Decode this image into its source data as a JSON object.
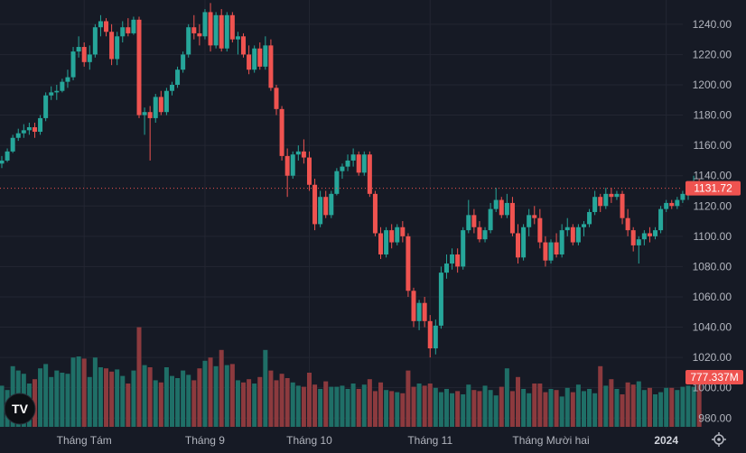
{
  "chart_data": {
    "type": "candlestick",
    "y_axis": {
      "position": "right",
      "ylim": [
        973,
        1256
      ],
      "ticks": [
        980,
        1000,
        1020,
        1040,
        1060,
        1080,
        1100,
        1120,
        1140,
        1160,
        1180,
        1200,
        1220,
        1240
      ]
    },
    "x_axis_labels": [
      {
        "label": "Tháng Tám",
        "index": 15
      },
      {
        "label": "Tháng 9",
        "index": 37
      },
      {
        "label": "Tháng 10",
        "index": 56
      },
      {
        "label": "Tháng 11",
        "index": 78
      },
      {
        "label": "Tháng Mười hai",
        "index": 100
      },
      {
        "label": "2024",
        "index": 121,
        "bold": true
      }
    ],
    "last_price": "1131.72",
    "last_volume": "777.337M",
    "grid": true,
    "colors": {
      "up": "#26a69a",
      "down": "#ef5350",
      "up_volume": "#1f6f67",
      "down_volume": "#8c3a3e",
      "background": "#161a25",
      "price_line": "#ef5350"
    },
    "candles": [
      {
        "o": 1148,
        "h": 1153,
        "l": 1145,
        "c": 1150,
        "v": 0.38
      },
      {
        "o": 1150,
        "h": 1158,
        "l": 1149,
        "c": 1156,
        "v": 0.34
      },
      {
        "o": 1156,
        "h": 1167,
        "l": 1155,
        "c": 1165,
        "v": 0.56
      },
      {
        "o": 1165,
        "h": 1171,
        "l": 1163,
        "c": 1168,
        "v": 0.52
      },
      {
        "o": 1168,
        "h": 1174,
        "l": 1165,
        "c": 1170,
        "v": 0.49
      },
      {
        "o": 1170,
        "h": 1175,
        "l": 1167,
        "c": 1172,
        "v": 0.4
      },
      {
        "o": 1172,
        "h": 1175,
        "l": 1165,
        "c": 1169,
        "v": 0.44
      },
      {
        "o": 1169,
        "h": 1180,
        "l": 1167,
        "c": 1178,
        "v": 0.54
      },
      {
        "o": 1178,
        "h": 1195,
        "l": 1176,
        "c": 1193,
        "v": 0.58
      },
      {
        "o": 1193,
        "h": 1199,
        "l": 1190,
        "c": 1195,
        "v": 0.46
      },
      {
        "o": 1195,
        "h": 1200,
        "l": 1190,
        "c": 1196,
        "v": 0.52
      },
      {
        "o": 1196,
        "h": 1204,
        "l": 1195,
        "c": 1202,
        "v": 0.5
      },
      {
        "o": 1202,
        "h": 1210,
        "l": 1198,
        "c": 1205,
        "v": 0.49
      },
      {
        "o": 1205,
        "h": 1225,
        "l": 1203,
        "c": 1222,
        "v": 0.64
      },
      {
        "o": 1222,
        "h": 1232,
        "l": 1218,
        "c": 1225,
        "v": 0.65
      },
      {
        "o": 1225,
        "h": 1228,
        "l": 1212,
        "c": 1215,
        "v": 0.63
      },
      {
        "o": 1215,
        "h": 1226,
        "l": 1210,
        "c": 1220,
        "v": 0.46
      },
      {
        "o": 1220,
        "h": 1240,
        "l": 1218,
        "c": 1238,
        "v": 0.64
      },
      {
        "o": 1238,
        "h": 1246,
        "l": 1232,
        "c": 1242,
        "v": 0.55
      },
      {
        "o": 1242,
        "h": 1244,
        "l": 1232,
        "c": 1235,
        "v": 0.54
      },
      {
        "o": 1235,
        "h": 1240,
        "l": 1213,
        "c": 1217,
        "v": 0.51
      },
      {
        "o": 1217,
        "h": 1235,
        "l": 1213,
        "c": 1232,
        "v": 0.53
      },
      {
        "o": 1232,
        "h": 1242,
        "l": 1228,
        "c": 1238,
        "v": 0.47
      },
      {
        "o": 1238,
        "h": 1244,
        "l": 1232,
        "c": 1234,
        "v": 0.4
      },
      {
        "o": 1234,
        "h": 1245,
        "l": 1233,
        "c": 1243,
        "v": 0.52
      },
      {
        "o": 1243,
        "h": 1245,
        "l": 1178,
        "c": 1180,
        "v": 0.92
      },
      {
        "o": 1180,
        "h": 1185,
        "l": 1167,
        "c": 1182,
        "v": 0.57
      },
      {
        "o": 1182,
        "h": 1186,
        "l": 1150,
        "c": 1178,
        "v": 0.55
      },
      {
        "o": 1178,
        "h": 1194,
        "l": 1175,
        "c": 1192,
        "v": 0.43
      },
      {
        "o": 1192,
        "h": 1196,
        "l": 1180,
        "c": 1182,
        "v": 0.41
      },
      {
        "o": 1182,
        "h": 1198,
        "l": 1180,
        "c": 1196,
        "v": 0.55
      },
      {
        "o": 1196,
        "h": 1202,
        "l": 1193,
        "c": 1200,
        "v": 0.47
      },
      {
        "o": 1200,
        "h": 1212,
        "l": 1198,
        "c": 1210,
        "v": 0.45
      },
      {
        "o": 1210,
        "h": 1222,
        "l": 1208,
        "c": 1220,
        "v": 0.52
      },
      {
        "o": 1220,
        "h": 1240,
        "l": 1218,
        "c": 1238,
        "v": 0.48
      },
      {
        "o": 1238,
        "h": 1246,
        "l": 1230,
        "c": 1234,
        "v": 0.43
      },
      {
        "o": 1234,
        "h": 1240,
        "l": 1226,
        "c": 1232,
        "v": 0.54
      },
      {
        "o": 1232,
        "h": 1250,
        "l": 1230,
        "c": 1248,
        "v": 0.61
      },
      {
        "o": 1248,
        "h": 1254,
        "l": 1222,
        "c": 1226,
        "v": 0.64
      },
      {
        "o": 1226,
        "h": 1248,
        "l": 1224,
        "c": 1246,
        "v": 0.56
      },
      {
        "o": 1246,
        "h": 1250,
        "l": 1222,
        "c": 1224,
        "v": 0.71
      },
      {
        "o": 1224,
        "h": 1248,
        "l": 1222,
        "c": 1246,
        "v": 0.57
      },
      {
        "o": 1246,
        "h": 1248,
        "l": 1228,
        "c": 1230,
        "v": 0.58
      },
      {
        "o": 1230,
        "h": 1235,
        "l": 1220,
        "c": 1232,
        "v": 0.43
      },
      {
        "o": 1232,
        "h": 1234,
        "l": 1218,
        "c": 1220,
        "v": 0.41
      },
      {
        "o": 1220,
        "h": 1226,
        "l": 1207,
        "c": 1210,
        "v": 0.44
      },
      {
        "o": 1210,
        "h": 1226,
        "l": 1208,
        "c": 1224,
        "v": 0.4
      },
      {
        "o": 1224,
        "h": 1228,
        "l": 1210,
        "c": 1212,
        "v": 0.46
      },
      {
        "o": 1212,
        "h": 1232,
        "l": 1210,
        "c": 1226,
        "v": 0.71
      },
      {
        "o": 1226,
        "h": 1230,
        "l": 1196,
        "c": 1198,
        "v": 0.52
      },
      {
        "o": 1198,
        "h": 1200,
        "l": 1180,
        "c": 1184,
        "v": 0.43
      },
      {
        "o": 1184,
        "h": 1186,
        "l": 1150,
        "c": 1153,
        "v": 0.49
      },
      {
        "o": 1153,
        "h": 1158,
        "l": 1126,
        "c": 1140,
        "v": 0.45
      },
      {
        "o": 1140,
        "h": 1156,
        "l": 1138,
        "c": 1154,
        "v": 0.41
      },
      {
        "o": 1154,
        "h": 1160,
        "l": 1150,
        "c": 1156,
        "v": 0.38
      },
      {
        "o": 1156,
        "h": 1164,
        "l": 1148,
        "c": 1152,
        "v": 0.37
      },
      {
        "o": 1152,
        "h": 1156,
        "l": 1130,
        "c": 1134,
        "v": 0.5
      },
      {
        "o": 1134,
        "h": 1138,
        "l": 1104,
        "c": 1108,
        "v": 0.39
      },
      {
        "o": 1108,
        "h": 1130,
        "l": 1106,
        "c": 1126,
        "v": 0.35
      },
      {
        "o": 1126,
        "h": 1130,
        "l": 1112,
        "c": 1114,
        "v": 0.42
      },
      {
        "o": 1114,
        "h": 1130,
        "l": 1112,
        "c": 1128,
        "v": 0.37
      },
      {
        "o": 1128,
        "h": 1145,
        "l": 1127,
        "c": 1143,
        "v": 0.37
      },
      {
        "o": 1143,
        "h": 1148,
        "l": 1138,
        "c": 1146,
        "v": 0.38
      },
      {
        "o": 1146,
        "h": 1154,
        "l": 1143,
        "c": 1150,
        "v": 0.35
      },
      {
        "o": 1150,
        "h": 1158,
        "l": 1146,
        "c": 1154,
        "v": 0.4
      },
      {
        "o": 1154,
        "h": 1156,
        "l": 1140,
        "c": 1142,
        "v": 0.35
      },
      {
        "o": 1142,
        "h": 1156,
        "l": 1140,
        "c": 1154,
        "v": 0.39
      },
      {
        "o": 1154,
        "h": 1156,
        "l": 1126,
        "c": 1128,
        "v": 0.44
      },
      {
        "o": 1128,
        "h": 1130,
        "l": 1100,
        "c": 1102,
        "v": 0.33
      },
      {
        "o": 1102,
        "h": 1106,
        "l": 1085,
        "c": 1088,
        "v": 0.41
      },
      {
        "o": 1088,
        "h": 1106,
        "l": 1086,
        "c": 1104,
        "v": 0.34
      },
      {
        "o": 1104,
        "h": 1108,
        "l": 1092,
        "c": 1096,
        "v": 0.33
      },
      {
        "o": 1096,
        "h": 1108,
        "l": 1094,
        "c": 1106,
        "v": 0.32
      },
      {
        "o": 1106,
        "h": 1110,
        "l": 1096,
        "c": 1100,
        "v": 0.31
      },
      {
        "o": 1100,
        "h": 1102,
        "l": 1060,
        "c": 1064,
        "v": 0.52
      },
      {
        "o": 1064,
        "h": 1066,
        "l": 1040,
        "c": 1044,
        "v": 0.37
      },
      {
        "o": 1044,
        "h": 1058,
        "l": 1038,
        "c": 1056,
        "v": 0.4
      },
      {
        "o": 1056,
        "h": 1060,
        "l": 1040,
        "c": 1044,
        "v": 0.38
      },
      {
        "o": 1044,
        "h": 1048,
        "l": 1020,
        "c": 1026,
        "v": 0.4
      },
      {
        "o": 1026,
        "h": 1045,
        "l": 1022,
        "c": 1041,
        "v": 0.36
      },
      {
        "o": 1041,
        "h": 1080,
        "l": 1039,
        "c": 1076,
        "v": 0.32
      },
      {
        "o": 1076,
        "h": 1088,
        "l": 1072,
        "c": 1082,
        "v": 0.35
      },
      {
        "o": 1082,
        "h": 1092,
        "l": 1078,
        "c": 1088,
        "v": 0.31
      },
      {
        "o": 1088,
        "h": 1092,
        "l": 1076,
        "c": 1080,
        "v": 0.33
      },
      {
        "o": 1080,
        "h": 1106,
        "l": 1078,
        "c": 1104,
        "v": 0.3
      },
      {
        "o": 1104,
        "h": 1124,
        "l": 1102,
        "c": 1114,
        "v": 0.39
      },
      {
        "o": 1114,
        "h": 1118,
        "l": 1102,
        "c": 1106,
        "v": 0.34
      },
      {
        "o": 1106,
        "h": 1110,
        "l": 1096,
        "c": 1098,
        "v": 0.33
      },
      {
        "o": 1098,
        "h": 1106,
        "l": 1096,
        "c": 1104,
        "v": 0.38
      },
      {
        "o": 1104,
        "h": 1122,
        "l": 1102,
        "c": 1118,
        "v": 0.34
      },
      {
        "o": 1118,
        "h": 1132,
        "l": 1116,
        "c": 1124,
        "v": 0.29
      },
      {
        "o": 1124,
        "h": 1126,
        "l": 1112,
        "c": 1114,
        "v": 0.37
      },
      {
        "o": 1114,
        "h": 1128,
        "l": 1112,
        "c": 1122,
        "v": 0.54
      },
      {
        "o": 1122,
        "h": 1126,
        "l": 1100,
        "c": 1102,
        "v": 0.33
      },
      {
        "o": 1102,
        "h": 1108,
        "l": 1082,
        "c": 1086,
        "v": 0.46
      },
      {
        "o": 1086,
        "h": 1108,
        "l": 1084,
        "c": 1106,
        "v": 0.35
      },
      {
        "o": 1106,
        "h": 1118,
        "l": 1100,
        "c": 1114,
        "v": 0.31
      },
      {
        "o": 1114,
        "h": 1120,
        "l": 1108,
        "c": 1112,
        "v": 0.4
      },
      {
        "o": 1112,
        "h": 1118,
        "l": 1092,
        "c": 1096,
        "v": 0.4
      },
      {
        "o": 1096,
        "h": 1100,
        "l": 1080,
        "c": 1084,
        "v": 0.32
      },
      {
        "o": 1084,
        "h": 1098,
        "l": 1082,
        "c": 1096,
        "v": 0.35
      },
      {
        "o": 1096,
        "h": 1102,
        "l": 1086,
        "c": 1088,
        "v": 0.34
      },
      {
        "o": 1088,
        "h": 1108,
        "l": 1086,
        "c": 1104,
        "v": 0.28
      },
      {
        "o": 1104,
        "h": 1112,
        "l": 1100,
        "c": 1106,
        "v": 0.36
      },
      {
        "o": 1106,
        "h": 1108,
        "l": 1094,
        "c": 1096,
        "v": 0.32
      },
      {
        "o": 1096,
        "h": 1108,
        "l": 1094,
        "c": 1106,
        "v": 0.39
      },
      {
        "o": 1106,
        "h": 1110,
        "l": 1100,
        "c": 1108,
        "v": 0.33
      },
      {
        "o": 1108,
        "h": 1118,
        "l": 1106,
        "c": 1116,
        "v": 0.35
      },
      {
        "o": 1116,
        "h": 1130,
        "l": 1114,
        "c": 1126,
        "v": 0.31
      },
      {
        "o": 1126,
        "h": 1128,
        "l": 1116,
        "c": 1120,
        "v": 0.56
      },
      {
        "o": 1120,
        "h": 1132,
        "l": 1118,
        "c": 1128,
        "v": 0.38
      },
      {
        "o": 1128,
        "h": 1132,
        "l": 1122,
        "c": 1126,
        "v": 0.44
      },
      {
        "o": 1126,
        "h": 1130,
        "l": 1124,
        "c": 1128,
        "v": 0.35
      },
      {
        "o": 1128,
        "h": 1130,
        "l": 1108,
        "c": 1112,
        "v": 0.3
      },
      {
        "o": 1112,
        "h": 1118,
        "l": 1100,
        "c": 1104,
        "v": 0.41
      },
      {
        "o": 1104,
        "h": 1106,
        "l": 1090,
        "c": 1094,
        "v": 0.39
      },
      {
        "o": 1094,
        "h": 1100,
        "l": 1082,
        "c": 1098,
        "v": 0.42
      },
      {
        "o": 1098,
        "h": 1104,
        "l": 1094,
        "c": 1102,
        "v": 0.34
      },
      {
        "o": 1102,
        "h": 1106,
        "l": 1096,
        "c": 1100,
        "v": 0.36
      },
      {
        "o": 1100,
        "h": 1106,
        "l": 1098,
        "c": 1104,
        "v": 0.3
      },
      {
        "o": 1104,
        "h": 1120,
        "l": 1102,
        "c": 1118,
        "v": 0.32
      },
      {
        "o": 1118,
        "h": 1124,
        "l": 1116,
        "c": 1122,
        "v": 0.36
      },
      {
        "o": 1122,
        "h": 1124,
        "l": 1118,
        "c": 1120,
        "v": 0.36
      },
      {
        "o": 1120,
        "h": 1126,
        "l": 1118,
        "c": 1124,
        "v": 0.34
      },
      {
        "o": 1124,
        "h": 1130,
        "l": 1122,
        "c": 1128,
        "v": 0.37
      },
      {
        "o": 1128,
        "h": 1134,
        "l": 1124,
        "c": 1130,
        "v": 0.38
      },
      {
        "o": 1130,
        "h": 1140,
        "l": 1128,
        "c": 1136,
        "v": 0.37
      },
      {
        "o": 1136,
        "h": 1138,
        "l": 1128,
        "c": 1131.72,
        "v": 0.49
      }
    ]
  },
  "ui": {
    "price_badge": {
      "text": "1131.72",
      "color": "#ef5350"
    },
    "volume_badge": {
      "text": "777.337M",
      "color": "#ef5350"
    },
    "logo_text": "TV",
    "settings_icon": "gear-icon"
  }
}
